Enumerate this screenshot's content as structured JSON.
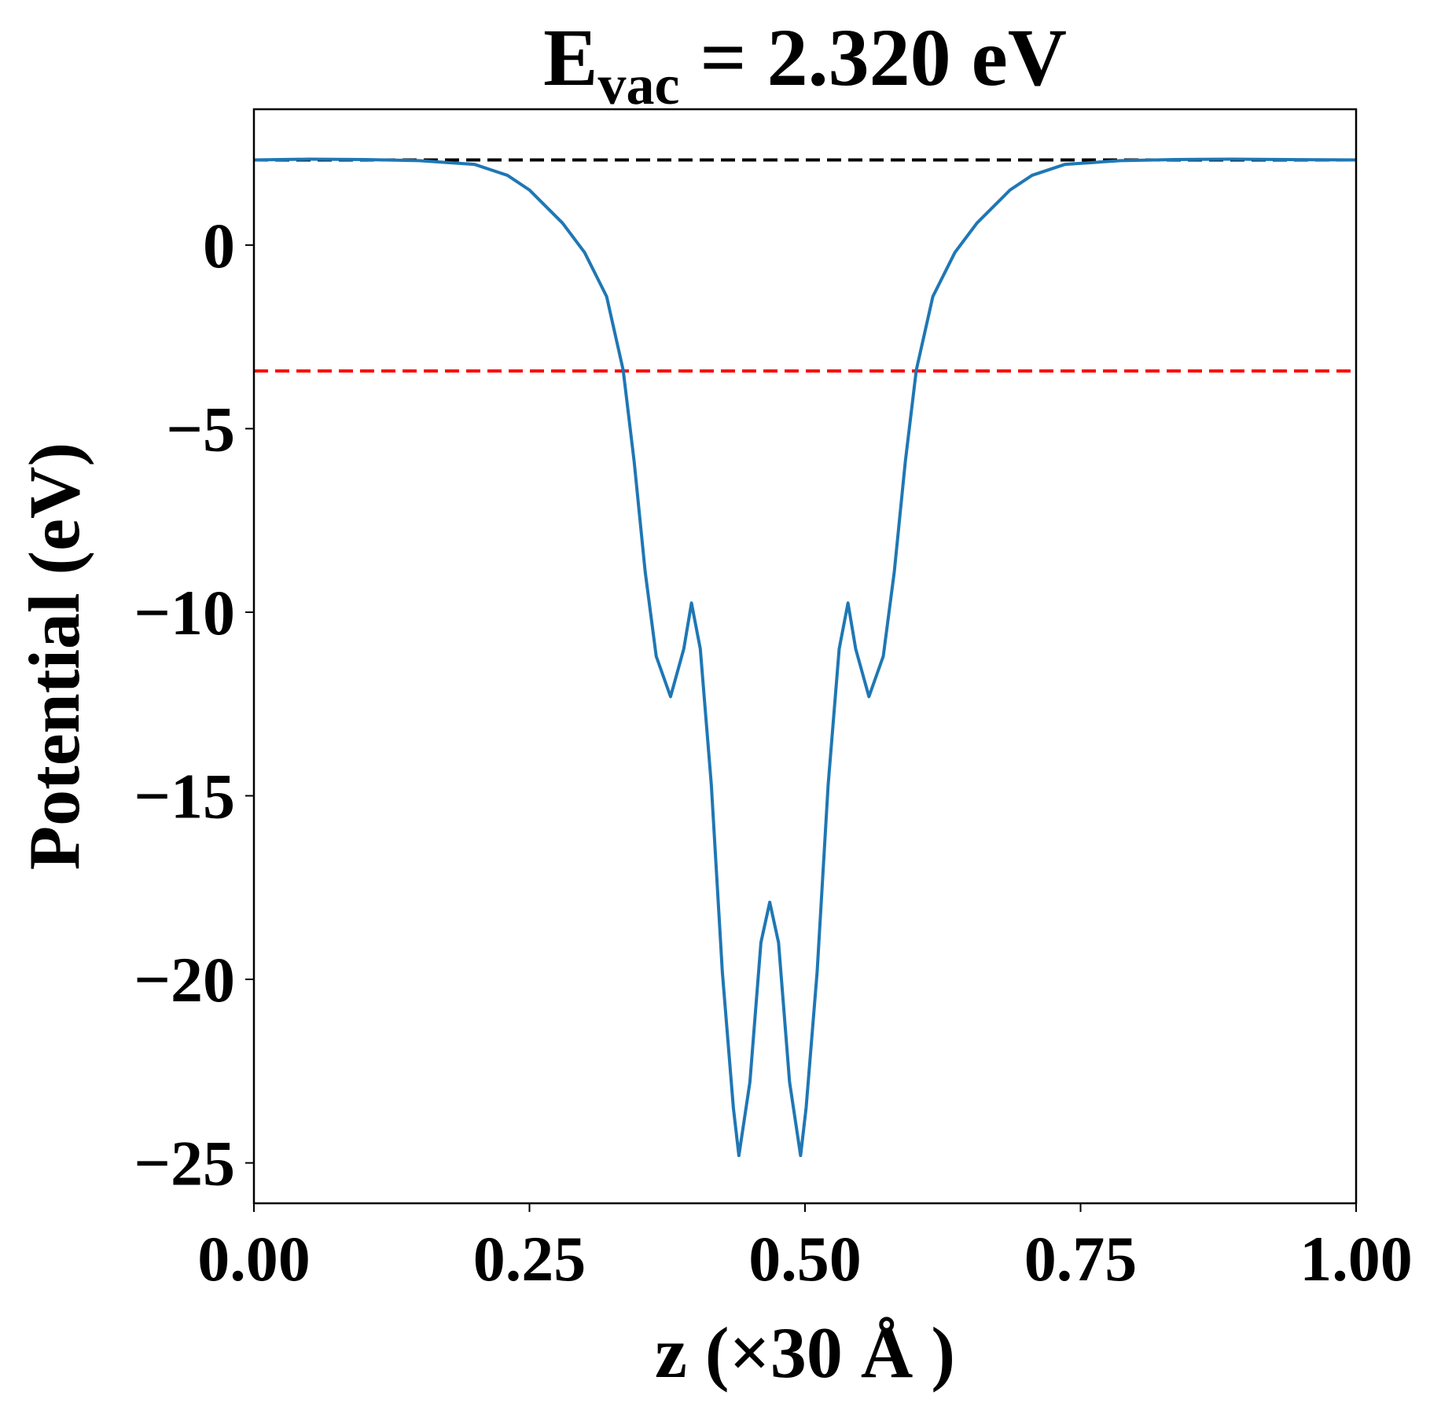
{
  "chart_data": {
    "type": "line",
    "title": {
      "main": "E",
      "subscript": "vac",
      "rest": " = 2.320 eV"
    },
    "x_label": "z (×30 Å )",
    "y_label": "Potential (eV)",
    "series": [
      {
        "color": "#1f77b4",
        "x": [
          0,
          0.05,
          0.1,
          0.15,
          0.2,
          0.23,
          0.25,
          0.28,
          0.3,
          0.32,
          0.335,
          0.345,
          0.355,
          0.365,
          0.378,
          0.39,
          0.397,
          0.405,
          0.415,
          0.425,
          0.435,
          0.44,
          0.45,
          0.46,
          0.468,
          0.476,
          0.486,
          0.496,
          0.501,
          0.511,
          0.521,
          0.531,
          0.539,
          0.546,
          0.558,
          0.571,
          0.581,
          0.591,
          0.601,
          0.616,
          0.636,
          0.656,
          0.686,
          0.706,
          0.736,
          0.786,
          0.836,
          0.886,
          0.936,
          1.0
        ],
        "values": [
          2.32,
          2.34,
          2.33,
          2.3,
          2.2,
          1.9,
          1.5,
          0.6,
          -0.2,
          -1.4,
          -3.4,
          -5.9,
          -8.9,
          -11.2,
          -12.3,
          -11,
          -9.75,
          -11,
          -14.7,
          -19.8,
          -23.5,
          -24.8,
          -22.8,
          -19,
          -17.9,
          -19,
          -22.8,
          -24.8,
          -23.5,
          -19.8,
          -14.7,
          -11,
          -9.75,
          -11,
          -12.3,
          -11.2,
          -8.9,
          -5.9,
          -3.4,
          -1.4,
          -0.2,
          0.6,
          1.5,
          1.9,
          2.2,
          2.3,
          2.33,
          2.34,
          2.33,
          2.32
        ]
      }
    ],
    "reference_lines": [
      {
        "value": 2.32,
        "color": "#000000"
      },
      {
        "value": -3.43,
        "color": "#ff0000"
      }
    ],
    "xlim": [
      0,
      1
    ],
    "ylim": [
      -26.1,
      3.7
    ],
    "xticks": [
      {
        "value": 0,
        "label": "0.00"
      },
      {
        "value": 0.25,
        "label": "0.25"
      },
      {
        "value": 0.5,
        "label": "0.50"
      },
      {
        "value": 0.75,
        "label": "0.75"
      },
      {
        "value": 1,
        "label": "1.00"
      }
    ],
    "yticks": [
      {
        "value": -25,
        "label": "−25"
      },
      {
        "value": -20,
        "label": "−20"
      },
      {
        "value": -15,
        "label": "−15"
      },
      {
        "value": -10,
        "label": "−10"
      },
      {
        "value": -5,
        "label": "−5"
      },
      {
        "value": 0,
        "label": "0"
      }
    ],
    "grid": false
  }
}
